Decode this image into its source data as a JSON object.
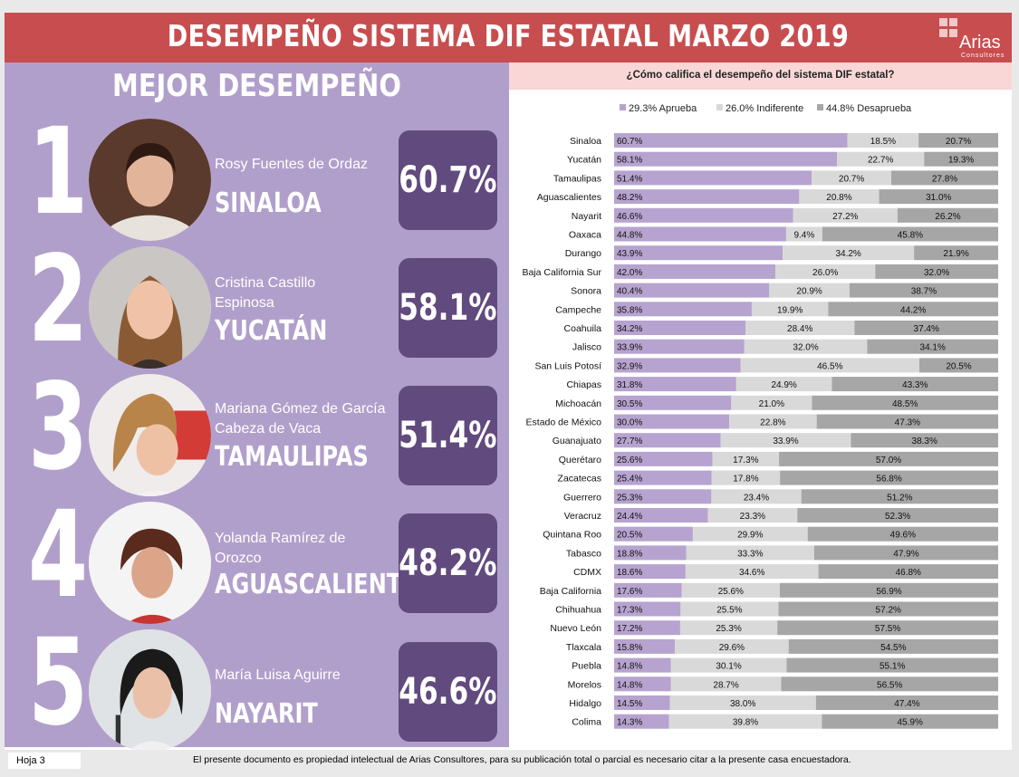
{
  "header": {
    "title": "DESEMPEÑO SISTEMA DIF ESTATAL MARZO 2019"
  },
  "logo": {
    "name": "Arias",
    "subtitle": "Consultores"
  },
  "ranking": {
    "title": "MEJOR DESEMPEÑO",
    "items": [
      {
        "rank": "1",
        "name": "Rosy Fuentes de Ordaz",
        "state": "SINALOA",
        "pct": "60.7%"
      },
      {
        "rank": "2",
        "name": "Cristina Castillo Espinosa",
        "state": "YUCATÁN",
        "pct": "58.1%"
      },
      {
        "rank": "3",
        "name": "Mariana Gómez de García Cabeza de Vaca",
        "state": "TAMAULIPAS",
        "pct": "51.4%"
      },
      {
        "rank": "4",
        "name": "Yolanda Ramírez de Orozco",
        "state": "AGUASCALIENTES",
        "pct": "48.2%"
      },
      {
        "rank": "5",
        "name": "María Luisa Aguirre",
        "state": "NAYARIT",
        "pct": "46.6%"
      }
    ]
  },
  "colors": {
    "aprueba": "#b7a3cf",
    "indiferente": "#d9d9d9",
    "desaprueba": "#a6a6a6",
    "header": "#c84d4f",
    "panel": "#b19fcb",
    "badge": "#614a7e"
  },
  "chart_data": {
    "type": "bar",
    "stacked": true,
    "orientation": "horizontal",
    "normalized_percent": true,
    "title": "¿Cómo califica el desempeño del sistema DIF estatal?",
    "legend": [
      "29.3% Aprueba",
      "26.0% Indiferente",
      "44.8% Desaprueba"
    ],
    "legend_position": "top",
    "categories": [
      "Sinaloa",
      "Yucatán",
      "Tamaulipas",
      "Aguascalientes",
      "Nayarit",
      "Oaxaca",
      "Durango",
      "Baja California Sur",
      "Sonora",
      "Campeche",
      "Coahuila",
      "Jalisco",
      "San Luis Potosí",
      "Chiapas",
      "Michoacán",
      "Estado de México",
      "Guanajuato",
      "Querétaro",
      "Zacatecas",
      "Guerrero",
      "Veracruz",
      "Quintana Roo",
      "Tabasco",
      "CDMX",
      "Baja California",
      "Chihuahua",
      "Nuevo León",
      "Tlaxcala",
      "Puebla",
      "Morelos",
      "Hidalgo",
      "Colima"
    ],
    "series": [
      {
        "name": "Aprueba",
        "values": [
          60.7,
          58.1,
          51.4,
          48.2,
          46.6,
          44.8,
          43.9,
          42.0,
          40.4,
          35.8,
          34.2,
          33.9,
          32.9,
          31.8,
          30.5,
          30.0,
          27.7,
          25.6,
          25.4,
          25.3,
          24.4,
          20.5,
          18.8,
          18.6,
          17.6,
          17.3,
          17.2,
          15.8,
          14.8,
          14.8,
          14.5,
          14.3
        ]
      },
      {
        "name": "Indiferente",
        "values": [
          18.5,
          22.7,
          20.7,
          20.8,
          27.2,
          9.4,
          34.2,
          26.0,
          20.9,
          19.9,
          28.4,
          32.0,
          46.5,
          24.9,
          21.0,
          22.8,
          33.9,
          17.3,
          17.8,
          23.4,
          23.3,
          29.9,
          33.3,
          34.6,
          25.6,
          25.5,
          25.3,
          29.6,
          30.1,
          28.7,
          38.0,
          39.8
        ]
      },
      {
        "name": "Desaprueba",
        "values": [
          20.7,
          19.3,
          27.8,
          31.0,
          26.2,
          45.8,
          21.9,
          32.0,
          38.7,
          44.2,
          37.4,
          34.1,
          20.5,
          43.3,
          48.5,
          47.3,
          38.3,
          57.0,
          56.8,
          51.2,
          52.3,
          49.6,
          47.9,
          46.8,
          56.9,
          57.2,
          57.5,
          54.5,
          55.1,
          56.5,
          47.4,
          45.9
        ]
      }
    ]
  },
  "footer": {
    "page": "Hoja 3",
    "note": "El presente documento es propiedad intelectual de Arias Consultores, para su publicación total o parcial es necesario citar a la presente casa encuestadora."
  }
}
